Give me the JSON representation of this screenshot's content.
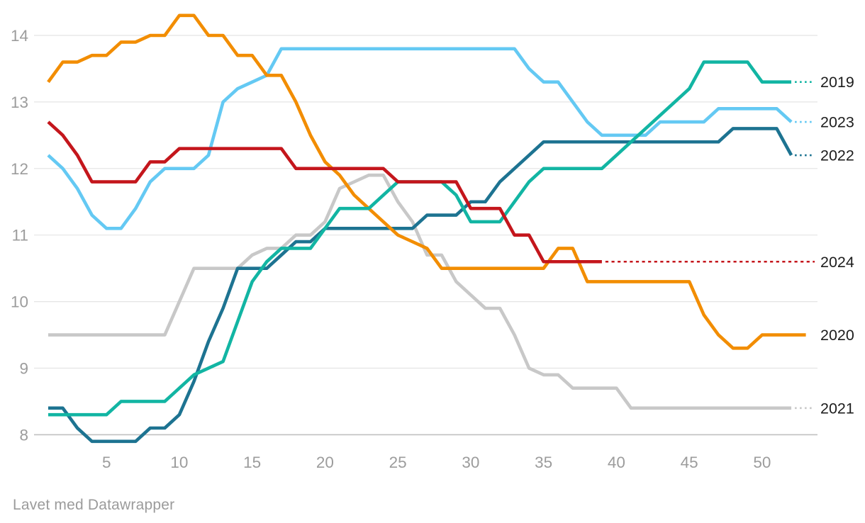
{
  "chart_data": {
    "type": "line",
    "title": "",
    "x_axis": {
      "ticks": [
        5,
        10,
        15,
        20,
        25,
        30,
        35,
        40,
        45,
        50
      ],
      "unit": "week-of-year",
      "range": [
        1,
        53
      ]
    },
    "y_axis": {
      "ticks": [
        14,
        13,
        12,
        11,
        10,
        9,
        8
      ],
      "baseline": 8,
      "range": [
        7.9,
        14.3
      ]
    },
    "grid": true,
    "legend_position": "right-line-end-labels",
    "series": [
      {
        "name": "2021",
        "color": "#c8c8c8",
        "start_week": 1,
        "dotted_to_label": true,
        "values": [
          9.5,
          9.5,
          9.5,
          9.5,
          9.5,
          9.5,
          9.5,
          9.5,
          9.5,
          10.0,
          10.5,
          10.5,
          10.5,
          10.5,
          10.7,
          10.8,
          10.8,
          11.0,
          11.0,
          11.2,
          11.7,
          11.8,
          11.9,
          11.9,
          11.5,
          11.2,
          10.7,
          10.7,
          10.3,
          10.1,
          9.9,
          9.9,
          9.5,
          9.0,
          8.9,
          8.9,
          8.7,
          8.7,
          8.7,
          8.7,
          8.4,
          8.4,
          8.4,
          8.4,
          8.4,
          8.4,
          8.4,
          8.4,
          8.4,
          8.4,
          8.4,
          8.4
        ]
      },
      {
        "name": "2023",
        "color": "#64c9f3",
        "start_week": 1,
        "dotted_to_label": true,
        "values": [
          12.2,
          12.0,
          11.7,
          11.3,
          11.1,
          11.1,
          11.4,
          11.8,
          12.0,
          12.0,
          12.0,
          12.2,
          13.0,
          13.2,
          13.3,
          13.4,
          13.8,
          13.8,
          13.8,
          13.8,
          13.8,
          13.8,
          13.8,
          13.8,
          13.8,
          13.8,
          13.8,
          13.8,
          13.8,
          13.8,
          13.8,
          13.8,
          13.8,
          13.5,
          13.3,
          13.3,
          13.0,
          12.7,
          12.5,
          12.5,
          12.5,
          12.5,
          12.7,
          12.7,
          12.7,
          12.7,
          12.9,
          12.9,
          12.9,
          12.9,
          12.9,
          12.7
        ]
      },
      {
        "name": "2022",
        "color": "#1d7391",
        "start_week": 1,
        "dotted_to_label": true,
        "values": [
          8.4,
          8.4,
          8.1,
          7.9,
          7.9,
          7.9,
          7.9,
          8.1,
          8.1,
          8.3,
          8.8,
          9.4,
          9.9,
          10.5,
          10.5,
          10.5,
          10.7,
          10.9,
          10.9,
          11.1,
          11.1,
          11.1,
          11.1,
          11.1,
          11.1,
          11.1,
          11.3,
          11.3,
          11.3,
          11.5,
          11.5,
          11.8,
          12.0,
          12.2,
          12.4,
          12.4,
          12.4,
          12.4,
          12.4,
          12.4,
          12.4,
          12.4,
          12.4,
          12.4,
          12.4,
          12.4,
          12.4,
          12.6,
          12.6,
          12.6,
          12.6,
          12.2
        ]
      },
      {
        "name": "2020",
        "color": "#f28d00",
        "start_week": 1,
        "dotted_to_label": false,
        "values": [
          13.3,
          13.6,
          13.6,
          13.7,
          13.7,
          13.9,
          13.9,
          14.0,
          14.0,
          14.3,
          14.3,
          14.0,
          14.0,
          13.7,
          13.7,
          13.4,
          13.4,
          13.0,
          12.5,
          12.1,
          11.9,
          11.6,
          11.4,
          11.2,
          11.0,
          10.9,
          10.8,
          10.5,
          10.5,
          10.5,
          10.5,
          10.5,
          10.5,
          10.5,
          10.5,
          10.8,
          10.8,
          10.3,
          10.3,
          10.3,
          10.3,
          10.3,
          10.3,
          10.3,
          10.3,
          9.8,
          9.5,
          9.3,
          9.3,
          9.5,
          9.5,
          9.5,
          9.5
        ]
      },
      {
        "name": "2019",
        "color": "#12b5a3",
        "start_week": 1,
        "dotted_to_label": true,
        "values": [
          8.3,
          8.3,
          8.3,
          8.3,
          8.3,
          8.5,
          8.5,
          8.5,
          8.5,
          8.7,
          8.9,
          9.0,
          9.1,
          9.7,
          10.3,
          10.6,
          10.8,
          10.8,
          10.8,
          11.1,
          11.4,
          11.4,
          11.4,
          11.6,
          11.8,
          11.8,
          11.8,
          11.8,
          11.6,
          11.2,
          11.2,
          11.2,
          11.5,
          11.8,
          12.0,
          12.0,
          12.0,
          12.0,
          12.0,
          12.2,
          12.4,
          12.6,
          12.8,
          13.0,
          13.2,
          13.6,
          13.6,
          13.6,
          13.6,
          13.3,
          13.3,
          13.3
        ]
      },
      {
        "name": "2024",
        "color": "#c4161c",
        "start_week": 1,
        "dotted_to_label": true,
        "values": [
          12.7,
          12.5,
          12.2,
          11.8,
          11.8,
          11.8,
          11.8,
          12.1,
          12.1,
          12.3,
          12.3,
          12.3,
          12.3,
          12.3,
          12.3,
          12.3,
          12.3,
          12.0,
          12.0,
          12.0,
          12.0,
          12.0,
          12.0,
          12.0,
          11.8,
          11.8,
          11.8,
          11.8,
          11.8,
          11.4,
          11.4,
          11.4,
          11.0,
          11.0,
          10.6,
          10.6,
          10.6,
          10.6,
          10.6
        ]
      }
    ],
    "style": {
      "grid_color": "#e4e4e4",
      "baseline_color": "#c0c0c0",
      "axis_label_color": "#9c9c9c",
      "series_label_color": "#1d1d1d"
    }
  },
  "footer": {
    "credit": "Lavet med Datawrapper"
  }
}
